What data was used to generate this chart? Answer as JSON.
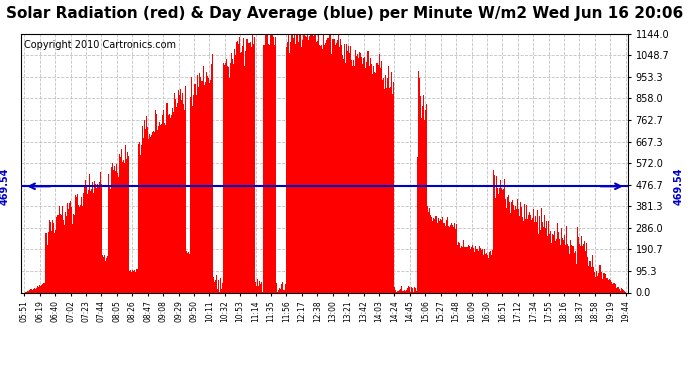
{
  "title": "Solar Radiation (red) & Day Average (blue) per Minute W/m2 Wed Jun 16 20:06",
  "copyright": "Copyright 2010 Cartronics.com",
  "average_value": 469.54,
  "y_max": 1144.0,
  "y_ticks": [
    0.0,
    95.3,
    190.7,
    286.0,
    381.3,
    476.7,
    572.0,
    667.3,
    762.7,
    858.0,
    953.3,
    1048.7,
    1144.0
  ],
  "y_tick_labels": [
    "0.0",
    "95.3",
    "190.7",
    "286.0",
    "381.3",
    "476.7",
    "572.0",
    "667.3",
    "762.7",
    "858.0",
    "953.3",
    "1048.7",
    "1144.0"
  ],
  "x_tick_labels": [
    "05:51",
    "06:19",
    "06:40",
    "07:02",
    "07:23",
    "07:44",
    "08:05",
    "08:26",
    "08:47",
    "09:08",
    "09:29",
    "09:50",
    "10:11",
    "10:32",
    "10:53",
    "11:14",
    "11:35",
    "11:56",
    "12:17",
    "12:38",
    "13:00",
    "13:21",
    "13:42",
    "14:03",
    "14:24",
    "14:45",
    "15:06",
    "15:27",
    "15:48",
    "16:09",
    "16:30",
    "16:51",
    "17:12",
    "17:34",
    "17:55",
    "18:16",
    "18:37",
    "18:58",
    "19:19",
    "19:44"
  ],
  "bar_color": "#FF0000",
  "avg_line_color": "#0000CC",
  "grid_color": "#BBBBBB",
  "bg_color": "#FFFFFF",
  "title_fontsize": 11,
  "copyright_fontsize": 7
}
